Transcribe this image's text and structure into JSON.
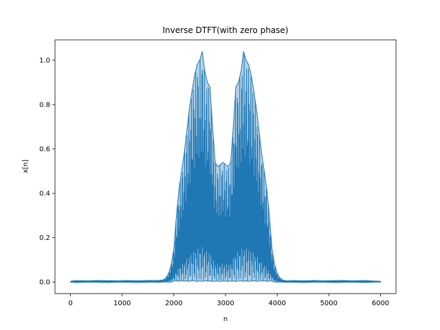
{
  "chart_data": {
    "type": "line",
    "title": "Inverse DTFT(with zero phase)",
    "xlabel": "n",
    "ylabel": "x[n]",
    "xlim": [
      -300,
      6300
    ],
    "ylim": [
      -0.052,
      1.092
    ],
    "xticks": [
      0,
      1000,
      2000,
      3000,
      4000,
      5000,
      6000
    ],
    "yticks": [
      0.0,
      0.2,
      0.4,
      0.6,
      0.8,
      1.0
    ],
    "xtick_labels": [
      "0",
      "1000",
      "2000",
      "3000",
      "4000",
      "5000",
      "6000"
    ],
    "ytick_labels": [
      "0.0",
      "0.2",
      "0.4",
      "0.6",
      "0.8",
      "1.0"
    ],
    "grid": false,
    "color": "#1f77b4",
    "series": [
      {
        "name": "",
        "x": [
          0,
          100,
          300,
          500,
          700,
          900,
          1100,
          1300,
          1500,
          1700,
          1800,
          1850,
          1900,
          1950,
          2000,
          2050,
          2100,
          2150,
          2200,
          2250,
          2300,
          2350,
          2400,
          2450,
          2500,
          2550,
          2600,
          2650,
          2700,
          2750,
          2800,
          2850,
          2900,
          2950,
          3000,
          3050,
          3100,
          3150,
          3200,
          3250,
          3300,
          3350,
          3400,
          3450,
          3500,
          3550,
          3600,
          3650,
          3700,
          3750,
          3800,
          3850,
          3900,
          3950,
          4000,
          4050,
          4100,
          4150,
          4200,
          4300,
          4500,
          4700,
          4900,
          5100,
          5300,
          5500,
          5700,
          5900,
          6000
        ],
        "upper": [
          0.003,
          0.006,
          0.005,
          0.006,
          0.006,
          0.005,
          0.006,
          0.005,
          0.006,
          0.006,
          0.01,
          0.02,
          0.04,
          0.08,
          0.15,
          0.3,
          0.42,
          0.5,
          0.58,
          0.68,
          0.78,
          0.86,
          0.93,
          0.98,
          1.0,
          1.04,
          0.95,
          0.9,
          0.88,
          0.7,
          0.54,
          0.52,
          0.53,
          0.54,
          0.53,
          0.52,
          0.54,
          0.7,
          0.88,
          0.9,
          0.95,
          1.04,
          1.0,
          0.98,
          0.93,
          0.86,
          0.78,
          0.68,
          0.58,
          0.5,
          0.42,
          0.3,
          0.15,
          0.08,
          0.04,
          0.02,
          0.01,
          0.006,
          0.005,
          0.006,
          0.005,
          0.006,
          0.005,
          0.006,
          0.006,
          0.005,
          0.006,
          0.004,
          0.003
        ],
        "lower": [
          0.0,
          -0.001,
          0.0,
          0.0,
          -0.001,
          0.0,
          0.0,
          -0.001,
          0.0,
          0.0,
          0.0,
          0.0,
          0.0,
          0.0,
          0.005,
          0.005,
          0.003,
          0.006,
          0.004,
          0.005,
          0.003,
          0.006,
          0.004,
          0.003,
          0.005,
          0.003,
          0.006,
          0.004,
          0.005,
          0.003,
          0.004,
          0.005,
          0.003,
          0.004,
          0.005,
          0.003,
          0.004,
          0.005,
          0.003,
          0.004,
          0.006,
          0.003,
          0.005,
          0.003,
          0.004,
          0.006,
          0.003,
          0.005,
          0.004,
          0.006,
          0.003,
          0.005,
          0.005,
          0.0,
          0.0,
          0.0,
          0.0,
          0.0,
          0.0,
          0.0,
          -0.001,
          0.0,
          0.0,
          -0.001,
          0.0,
          0.0,
          -0.001,
          0.0,
          0.0
        ]
      }
    ]
  }
}
